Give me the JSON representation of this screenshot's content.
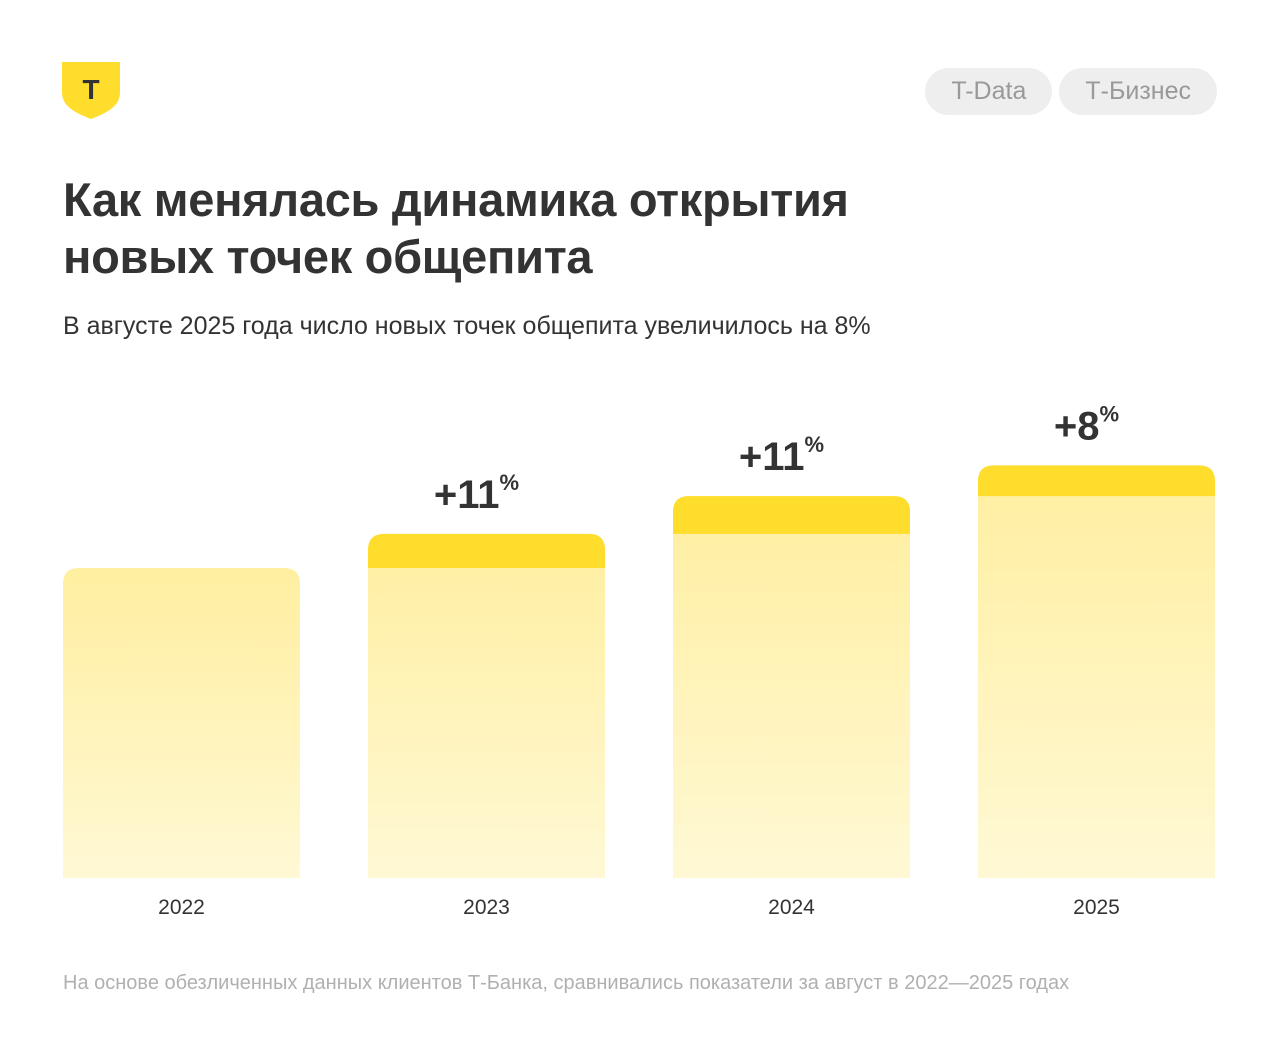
{
  "brand": {
    "logo_letter": "Т",
    "accent": "#ffdd2d",
    "bar_light": "#fff3a8"
  },
  "tags": [
    "T-Data",
    "Т-Бизнес"
  ],
  "header": {
    "title_line1": "Как менялась динамика открытия",
    "title_line2": "новых точек общепита",
    "subtitle": "В августе 2025 года число новых точек общепита увеличилось на 8%"
  },
  "chart_data": {
    "type": "bar",
    "categories": [
      "2022",
      "2023",
      "2024",
      "2025"
    ],
    "values": [
      100,
      111,
      123.2,
      133.1
    ],
    "growth_labels": [
      "",
      "+11",
      "+11",
      "+8"
    ],
    "growth_unit": "%",
    "ylim": [
      0,
      140
    ],
    "title": "Как менялась динамика открытия новых точек общепита",
    "xlabel": "",
    "ylabel": "",
    "grid": false,
    "legend": "none"
  },
  "footnote": "На основе обезличенных данных клиентов Т-Банка, сравнивались показатели за август в 2022—2025 годах"
}
